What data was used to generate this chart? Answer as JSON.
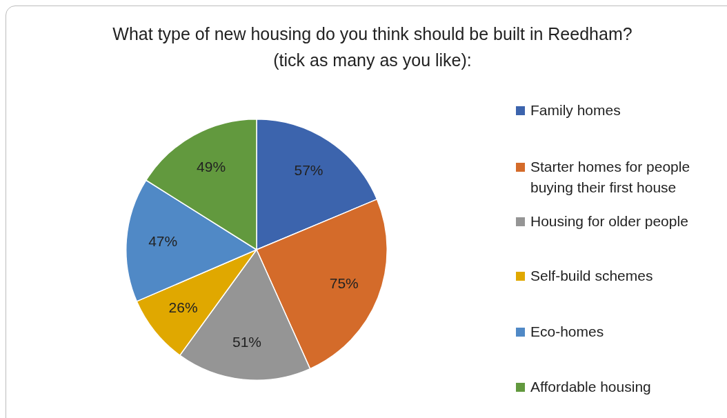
{
  "chart_data": {
    "type": "pie",
    "title": "What type of new housing do you think should be built in Reedham? (tick as many as you like):",
    "categories": [
      "Family homes",
      "Starter homes for people buying their first house",
      "Housing for older people",
      "Self-build schemes",
      "Eco-homes",
      "Affordable housing"
    ],
    "values": [
      57,
      75,
      51,
      26,
      47,
      49
    ],
    "colors": [
      "#3c64ad",
      "#d46b2a",
      "#959595",
      "#e0a800",
      "#5089c6",
      "#62993e"
    ],
    "value_labels": [
      "57%",
      "75%",
      "51%",
      "26%",
      "47%",
      "49%"
    ],
    "legend": "right"
  }
}
